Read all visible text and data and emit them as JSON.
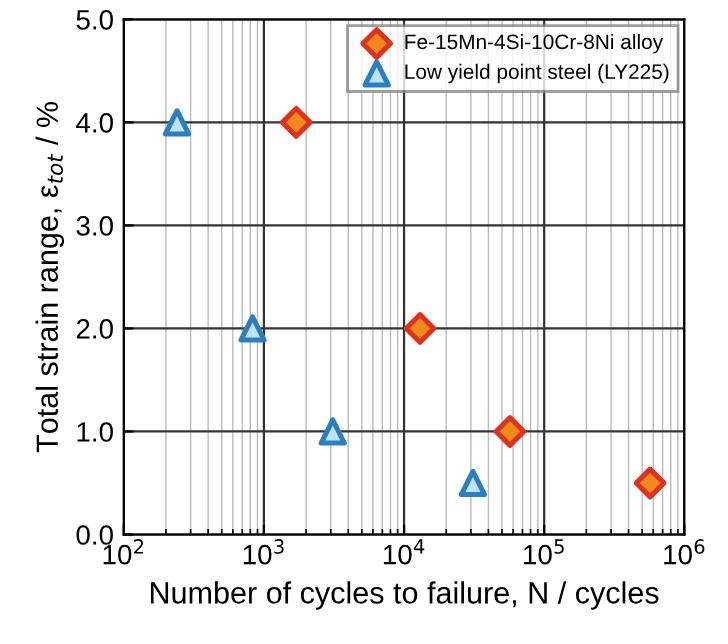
{
  "chart_data": {
    "type": "scatter",
    "xlabel": "Number of cycles to failure, N / cycles",
    "ylabel": "Total strain range, ε$_{tot}$ / %",
    "log": "x",
    "xlim": [
      100,
      1000000
    ],
    "ylim": [
      0,
      5
    ],
    "xticks": [
      {
        "value": 100,
        "label": "10$^{2}$"
      },
      {
        "value": 1000,
        "label": "10$^{3}$"
      },
      {
        "value": 10000,
        "label": "10$^{4}$"
      },
      {
        "value": 100000,
        "label": "10$^{5}$"
      },
      {
        "value": 1000000,
        "label": "10$^{6}$"
      }
    ],
    "yticks": [
      {
        "value": 0,
        "label": "0.0"
      },
      {
        "value": 1,
        "label": "1.0"
      },
      {
        "value": 2,
        "label": "2.0"
      },
      {
        "value": 3,
        "label": "3.0"
      },
      {
        "value": 4,
        "label": "4.0"
      },
      {
        "value": 5,
        "label": "5.0"
      }
    ],
    "grid": true,
    "legend": "top right",
    "series": [
      {
        "name": "Fe-15Mn-4Si-10Cr-8Ni alloy",
        "color": "#f08a1c",
        "marker": "diamond",
        "x": [
          1700,
          13000,
          57000,
          570000
        ],
        "values": [
          4.0,
          2.0,
          1.0,
          0.5
        ]
      },
      {
        "name": "Low yield point steel (LY225)",
        "color": "#bfe3f5",
        "marker": "triangle",
        "x": [
          240,
          830,
          3100,
          31000
        ],
        "values": [
          4.0,
          2.0,
          1.0,
          0.5
        ]
      }
    ]
  }
}
